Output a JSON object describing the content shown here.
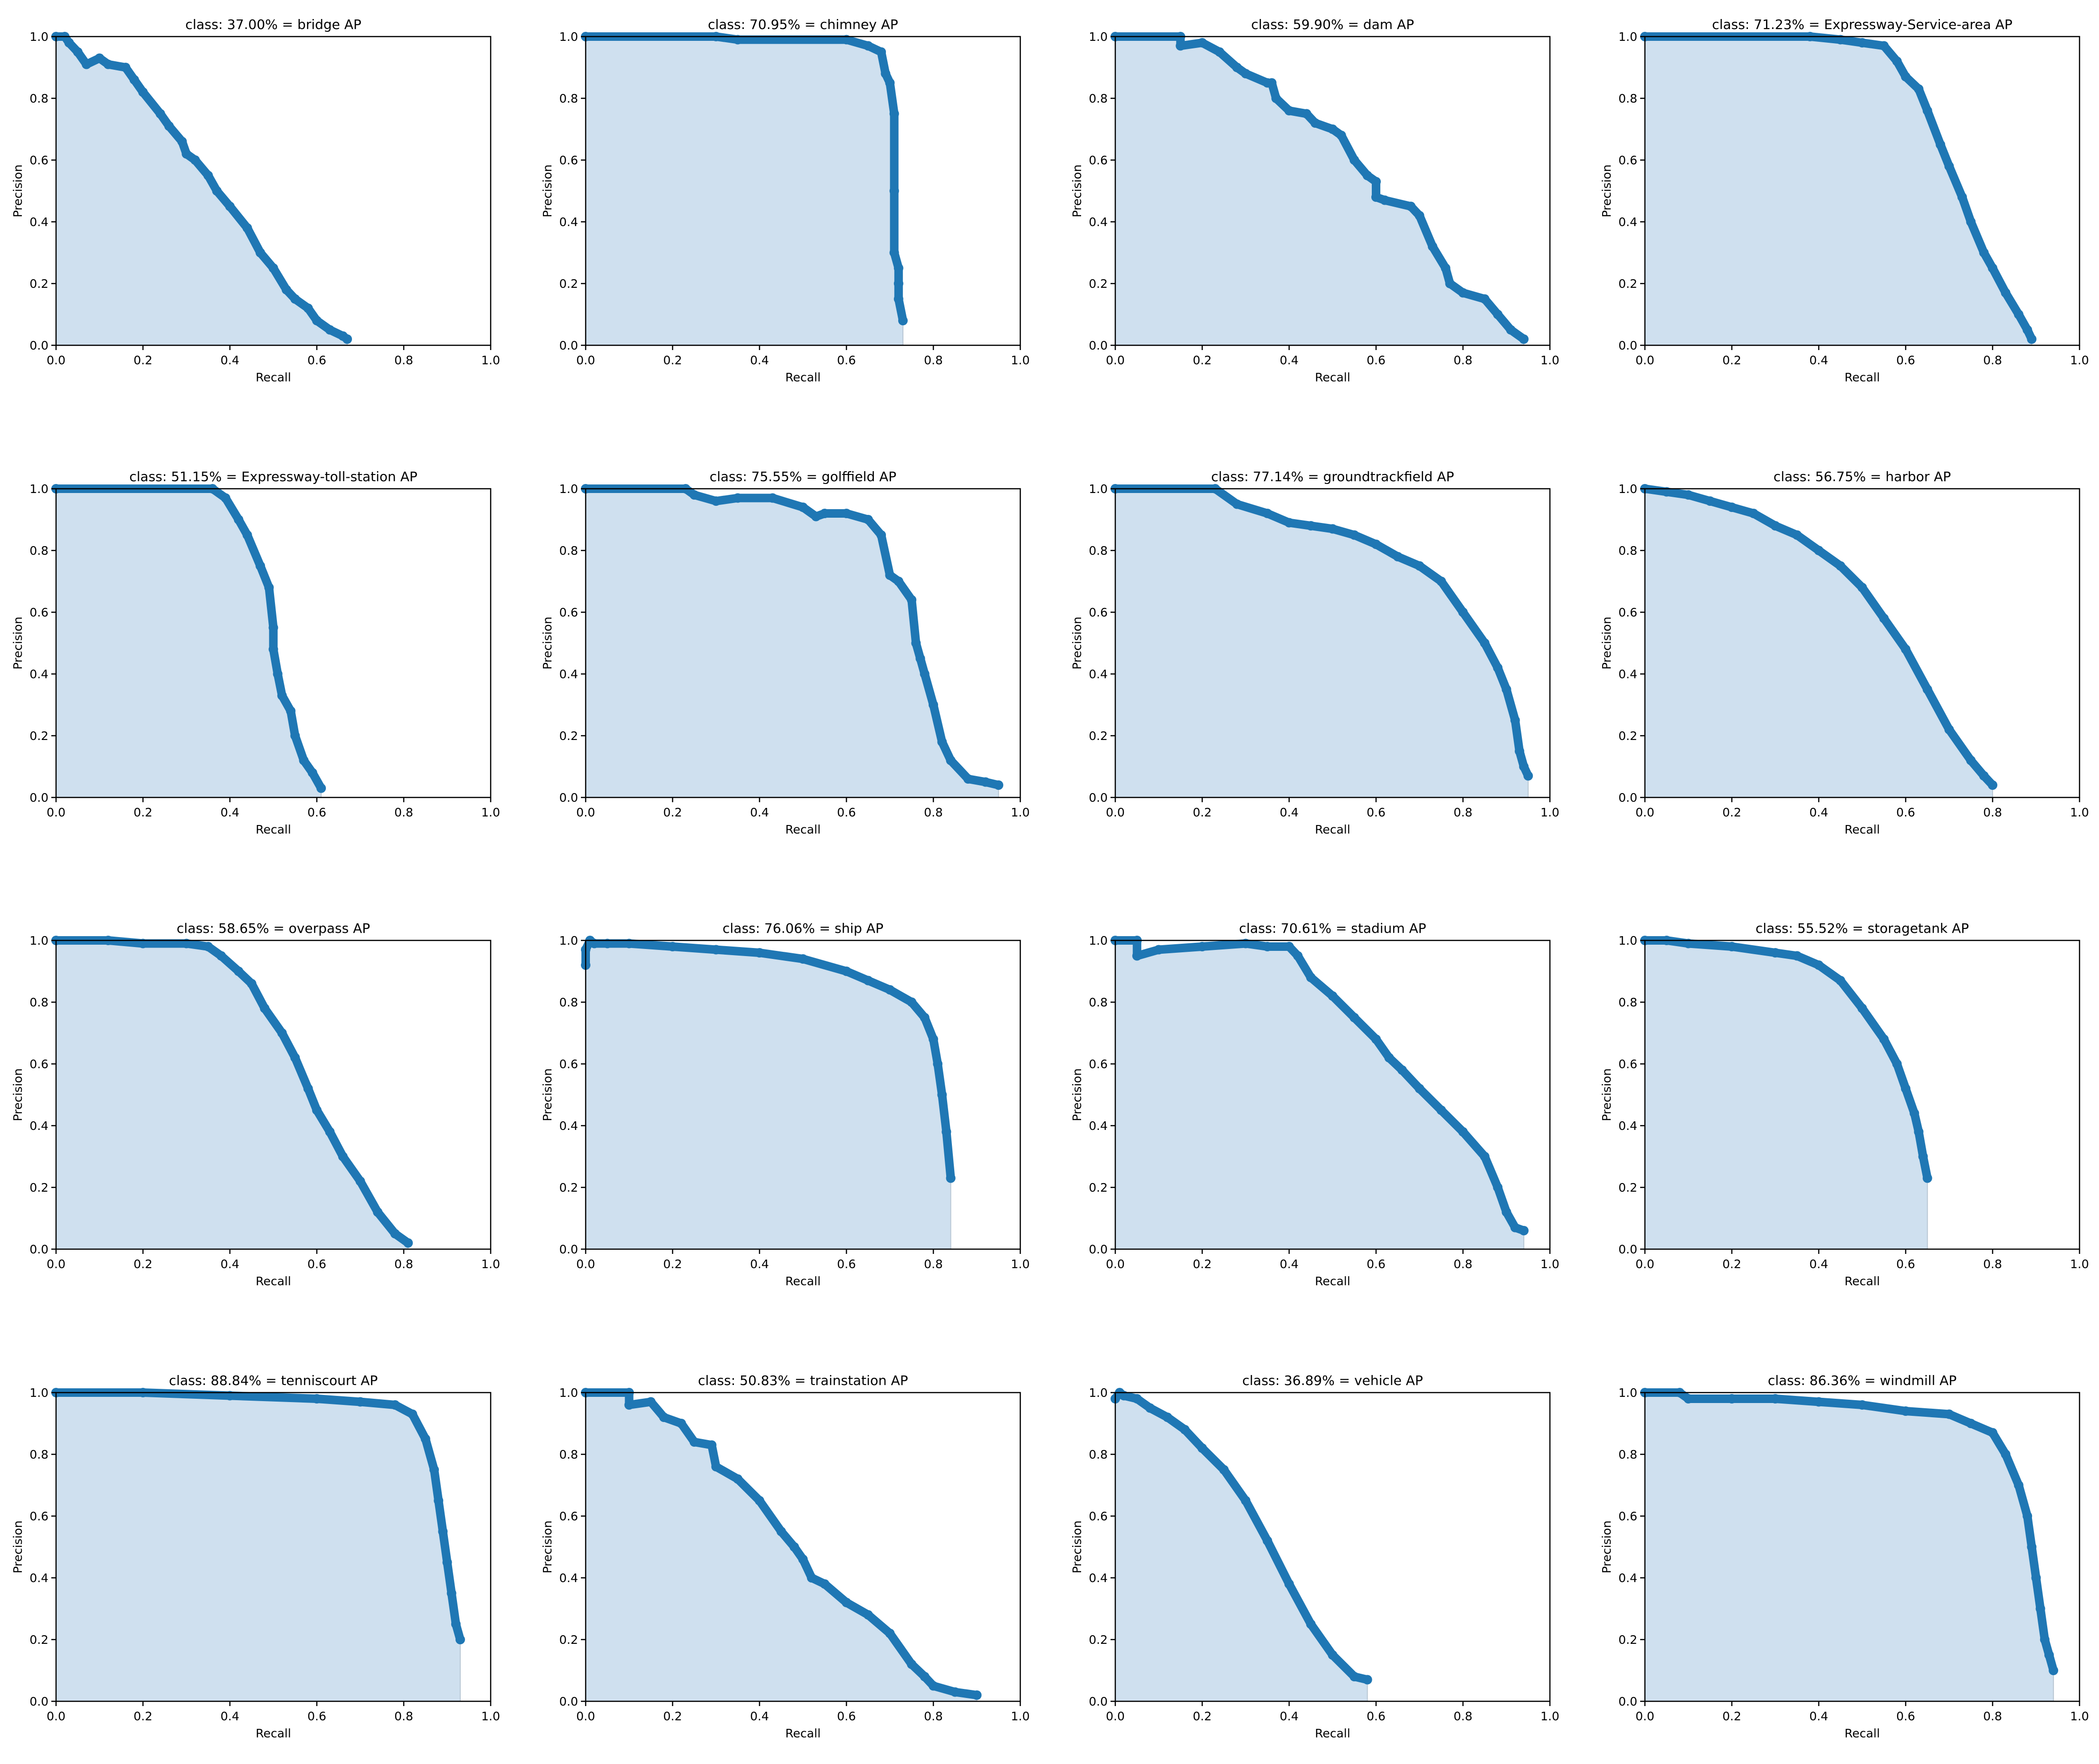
{
  "figure": {
    "ticks": [
      "0.0",
      "0.2",
      "0.4",
      "0.6",
      "0.8",
      "1.0"
    ],
    "colors": {
      "line": "#1f77b4",
      "fill": "#cfe0ef",
      "axes": "#000000"
    },
    "xlim": [
      0,
      1
    ],
    "ylim": [
      0,
      1
    ]
  },
  "chart_data": [
    {
      "type": "area",
      "title": "class: 37.00% = bridge AP",
      "xlabel": "Recall",
      "ylabel": "Precision",
      "x": [
        0.0,
        0.02,
        0.03,
        0.05,
        0.07,
        0.1,
        0.12,
        0.16,
        0.18,
        0.2,
        0.24,
        0.26,
        0.29,
        0.3,
        0.32,
        0.35,
        0.37,
        0.4,
        0.44,
        0.47,
        0.5,
        0.53,
        0.55,
        0.58,
        0.6,
        0.63,
        0.66,
        0.67
      ],
      "y": [
        1.0,
        1.0,
        0.98,
        0.95,
        0.91,
        0.93,
        0.91,
        0.9,
        0.86,
        0.82,
        0.75,
        0.71,
        0.66,
        0.62,
        0.6,
        0.55,
        0.5,
        0.45,
        0.38,
        0.3,
        0.25,
        0.18,
        0.15,
        0.12,
        0.08,
        0.05,
        0.03,
        0.02
      ]
    },
    {
      "type": "area",
      "title": "class: 70.95% = chimney AP",
      "xlabel": "Recall",
      "ylabel": "Precision",
      "x": [
        0.0,
        0.3,
        0.35,
        0.6,
        0.65,
        0.68,
        0.69,
        0.7,
        0.71,
        0.71,
        0.71,
        0.72,
        0.72,
        0.72,
        0.73
      ],
      "y": [
        1.0,
        1.0,
        0.99,
        0.99,
        0.97,
        0.95,
        0.88,
        0.85,
        0.75,
        0.5,
        0.3,
        0.25,
        0.2,
        0.15,
        0.08
      ]
    },
    {
      "type": "area",
      "title": "class: 59.90% = dam AP",
      "xlabel": "Recall",
      "ylabel": "Precision",
      "x": [
        0.0,
        0.15,
        0.15,
        0.2,
        0.24,
        0.28,
        0.3,
        0.35,
        0.36,
        0.37,
        0.4,
        0.44,
        0.46,
        0.5,
        0.52,
        0.55,
        0.58,
        0.6,
        0.6,
        0.62,
        0.68,
        0.7,
        0.73,
        0.76,
        0.77,
        0.8,
        0.85,
        0.88,
        0.91,
        0.94
      ],
      "y": [
        1.0,
        1.0,
        0.97,
        0.98,
        0.95,
        0.9,
        0.88,
        0.85,
        0.85,
        0.8,
        0.76,
        0.75,
        0.72,
        0.7,
        0.68,
        0.6,
        0.55,
        0.53,
        0.48,
        0.47,
        0.45,
        0.42,
        0.32,
        0.25,
        0.2,
        0.17,
        0.15,
        0.1,
        0.05,
        0.02
      ]
    },
    {
      "type": "area",
      "title": "class: 71.23% = Expressway-Service-area AP",
      "xlabel": "Recall",
      "ylabel": "Precision",
      "x": [
        0.0,
        0.38,
        0.45,
        0.5,
        0.55,
        0.58,
        0.6,
        0.63,
        0.65,
        0.68,
        0.7,
        0.73,
        0.75,
        0.78,
        0.8,
        0.83,
        0.86,
        0.88,
        0.89
      ],
      "y": [
        1.0,
        1.0,
        0.99,
        0.98,
        0.97,
        0.92,
        0.87,
        0.83,
        0.76,
        0.65,
        0.58,
        0.48,
        0.4,
        0.3,
        0.25,
        0.17,
        0.1,
        0.05,
        0.02
      ]
    },
    {
      "type": "area",
      "title": "class: 51.15% = Expressway-toll-station AP",
      "xlabel": "Recall",
      "ylabel": "Precision",
      "x": [
        0.0,
        0.36,
        0.39,
        0.42,
        0.44,
        0.47,
        0.49,
        0.5,
        0.5,
        0.51,
        0.52,
        0.54,
        0.55,
        0.57,
        0.59,
        0.61
      ],
      "y": [
        1.0,
        1.0,
        0.97,
        0.9,
        0.85,
        0.75,
        0.68,
        0.55,
        0.48,
        0.4,
        0.33,
        0.28,
        0.2,
        0.12,
        0.08,
        0.03
      ]
    },
    {
      "type": "area",
      "title": "class: 75.55% = golffield AP",
      "xlabel": "Recall",
      "ylabel": "Precision",
      "x": [
        0.0,
        0.23,
        0.25,
        0.3,
        0.35,
        0.43,
        0.5,
        0.53,
        0.55,
        0.6,
        0.65,
        0.68,
        0.7,
        0.72,
        0.75,
        0.76,
        0.77,
        0.78,
        0.8,
        0.82,
        0.84,
        0.88,
        0.92,
        0.95
      ],
      "y": [
        1.0,
        1.0,
        0.98,
        0.96,
        0.97,
        0.97,
        0.94,
        0.91,
        0.92,
        0.92,
        0.9,
        0.85,
        0.72,
        0.7,
        0.64,
        0.5,
        0.45,
        0.4,
        0.3,
        0.18,
        0.12,
        0.06,
        0.05,
        0.04
      ]
    },
    {
      "type": "area",
      "title": "class: 77.14% = groundtrackfield AP",
      "xlabel": "Recall",
      "ylabel": "Precision",
      "x": [
        0.0,
        0.23,
        0.28,
        0.35,
        0.4,
        0.45,
        0.5,
        0.55,
        0.6,
        0.65,
        0.7,
        0.75,
        0.8,
        0.85,
        0.88,
        0.9,
        0.92,
        0.93,
        0.94,
        0.95
      ],
      "y": [
        1.0,
        1.0,
        0.95,
        0.92,
        0.89,
        0.88,
        0.87,
        0.85,
        0.82,
        0.78,
        0.75,
        0.7,
        0.6,
        0.5,
        0.42,
        0.35,
        0.25,
        0.15,
        0.1,
        0.07
      ]
    },
    {
      "type": "area",
      "title": "class: 56.75% = harbor AP",
      "xlabel": "Recall",
      "ylabel": "Precision",
      "x": [
        0.0,
        0.05,
        0.1,
        0.15,
        0.2,
        0.25,
        0.3,
        0.35,
        0.4,
        0.45,
        0.5,
        0.55,
        0.6,
        0.65,
        0.7,
        0.75,
        0.78,
        0.8
      ],
      "y": [
        1.0,
        0.99,
        0.98,
        0.96,
        0.94,
        0.92,
        0.88,
        0.85,
        0.8,
        0.75,
        0.68,
        0.58,
        0.48,
        0.35,
        0.22,
        0.12,
        0.07,
        0.04
      ]
    },
    {
      "type": "area",
      "title": "class: 58.65% = overpass AP",
      "xlabel": "Recall",
      "ylabel": "Precision",
      "x": [
        0.0,
        0.12,
        0.2,
        0.3,
        0.35,
        0.38,
        0.42,
        0.45,
        0.48,
        0.52,
        0.55,
        0.58,
        0.6,
        0.63,
        0.66,
        0.7,
        0.74,
        0.78,
        0.81
      ],
      "y": [
        1.0,
        1.0,
        0.99,
        0.99,
        0.98,
        0.95,
        0.9,
        0.86,
        0.78,
        0.7,
        0.62,
        0.52,
        0.45,
        0.38,
        0.3,
        0.22,
        0.12,
        0.05,
        0.02
      ]
    },
    {
      "type": "area",
      "title": "class: 76.06% = ship AP",
      "xlabel": "Recall",
      "ylabel": "Precision",
      "x": [
        0.0,
        0.0,
        0.01,
        0.02,
        0.05,
        0.1,
        0.2,
        0.3,
        0.4,
        0.5,
        0.6,
        0.65,
        0.7,
        0.75,
        0.78,
        0.8,
        0.81,
        0.82,
        0.83,
        0.84
      ],
      "y": [
        0.92,
        0.97,
        1.0,
        0.99,
        0.99,
        0.99,
        0.98,
        0.97,
        0.96,
        0.94,
        0.9,
        0.87,
        0.84,
        0.8,
        0.75,
        0.68,
        0.6,
        0.5,
        0.38,
        0.23
      ]
    },
    {
      "type": "area",
      "title": "class: 70.61% = stadium AP",
      "xlabel": "Recall",
      "ylabel": "Precision",
      "x": [
        0.0,
        0.05,
        0.05,
        0.1,
        0.2,
        0.3,
        0.35,
        0.4,
        0.42,
        0.45,
        0.5,
        0.55,
        0.6,
        0.63,
        0.66,
        0.7,
        0.75,
        0.8,
        0.85,
        0.88,
        0.9,
        0.92,
        0.94
      ],
      "y": [
        1.0,
        1.0,
        0.95,
        0.97,
        0.98,
        0.99,
        0.98,
        0.98,
        0.95,
        0.88,
        0.82,
        0.75,
        0.68,
        0.62,
        0.58,
        0.52,
        0.45,
        0.38,
        0.3,
        0.2,
        0.12,
        0.07,
        0.06
      ]
    },
    {
      "type": "area",
      "title": "class: 55.52% = storagetank AP",
      "xlabel": "Recall",
      "ylabel": "Precision",
      "x": [
        0.0,
        0.05,
        0.1,
        0.2,
        0.3,
        0.35,
        0.4,
        0.45,
        0.5,
        0.55,
        0.58,
        0.6,
        0.62,
        0.63,
        0.64,
        0.65
      ],
      "y": [
        1.0,
        1.0,
        0.99,
        0.98,
        0.96,
        0.95,
        0.92,
        0.87,
        0.78,
        0.68,
        0.6,
        0.52,
        0.44,
        0.38,
        0.3,
        0.23
      ]
    },
    {
      "type": "area",
      "title": "class: 88.84% = tenniscourt AP",
      "xlabel": "Recall",
      "ylabel": "Precision",
      "x": [
        0.0,
        0.2,
        0.4,
        0.6,
        0.7,
        0.78,
        0.82,
        0.85,
        0.87,
        0.88,
        0.89,
        0.9,
        0.91,
        0.92,
        0.93
      ],
      "y": [
        1.0,
        1.0,
        0.99,
        0.98,
        0.97,
        0.96,
        0.93,
        0.85,
        0.75,
        0.65,
        0.55,
        0.45,
        0.35,
        0.25,
        0.2
      ]
    },
    {
      "type": "area",
      "title": "class: 50.83% = trainstation AP",
      "xlabel": "Recall",
      "ylabel": "Precision",
      "x": [
        0.0,
        0.1,
        0.1,
        0.15,
        0.18,
        0.22,
        0.25,
        0.29,
        0.3,
        0.35,
        0.4,
        0.45,
        0.48,
        0.5,
        0.52,
        0.55,
        0.6,
        0.65,
        0.7,
        0.75,
        0.78,
        0.8,
        0.85,
        0.9
      ],
      "y": [
        1.0,
        1.0,
        0.96,
        0.97,
        0.92,
        0.9,
        0.84,
        0.83,
        0.76,
        0.72,
        0.65,
        0.55,
        0.5,
        0.46,
        0.4,
        0.38,
        0.32,
        0.28,
        0.22,
        0.12,
        0.08,
        0.05,
        0.03,
        0.02
      ]
    },
    {
      "type": "area",
      "title": "class: 36.89% = vehicle AP",
      "xlabel": "Recall",
      "ylabel": "Precision",
      "x": [
        0.0,
        0.01,
        0.02,
        0.05,
        0.08,
        0.12,
        0.16,
        0.2,
        0.25,
        0.3,
        0.35,
        0.4,
        0.45,
        0.5,
        0.55,
        0.58
      ],
      "y": [
        0.98,
        1.0,
        0.99,
        0.98,
        0.95,
        0.92,
        0.88,
        0.82,
        0.75,
        0.65,
        0.52,
        0.38,
        0.25,
        0.15,
        0.08,
        0.07
      ]
    },
    {
      "type": "area",
      "title": "class: 86.36% = windmill AP",
      "xlabel": "Recall",
      "ylabel": "Precision",
      "x": [
        0.0,
        0.08,
        0.1,
        0.2,
        0.3,
        0.4,
        0.5,
        0.6,
        0.7,
        0.75,
        0.8,
        0.83,
        0.86,
        0.88,
        0.89,
        0.9,
        0.91,
        0.92,
        0.93,
        0.94
      ],
      "y": [
        1.0,
        1.0,
        0.98,
        0.98,
        0.98,
        0.97,
        0.96,
        0.94,
        0.93,
        0.9,
        0.87,
        0.8,
        0.7,
        0.6,
        0.5,
        0.4,
        0.3,
        0.2,
        0.15,
        0.1
      ]
    }
  ]
}
